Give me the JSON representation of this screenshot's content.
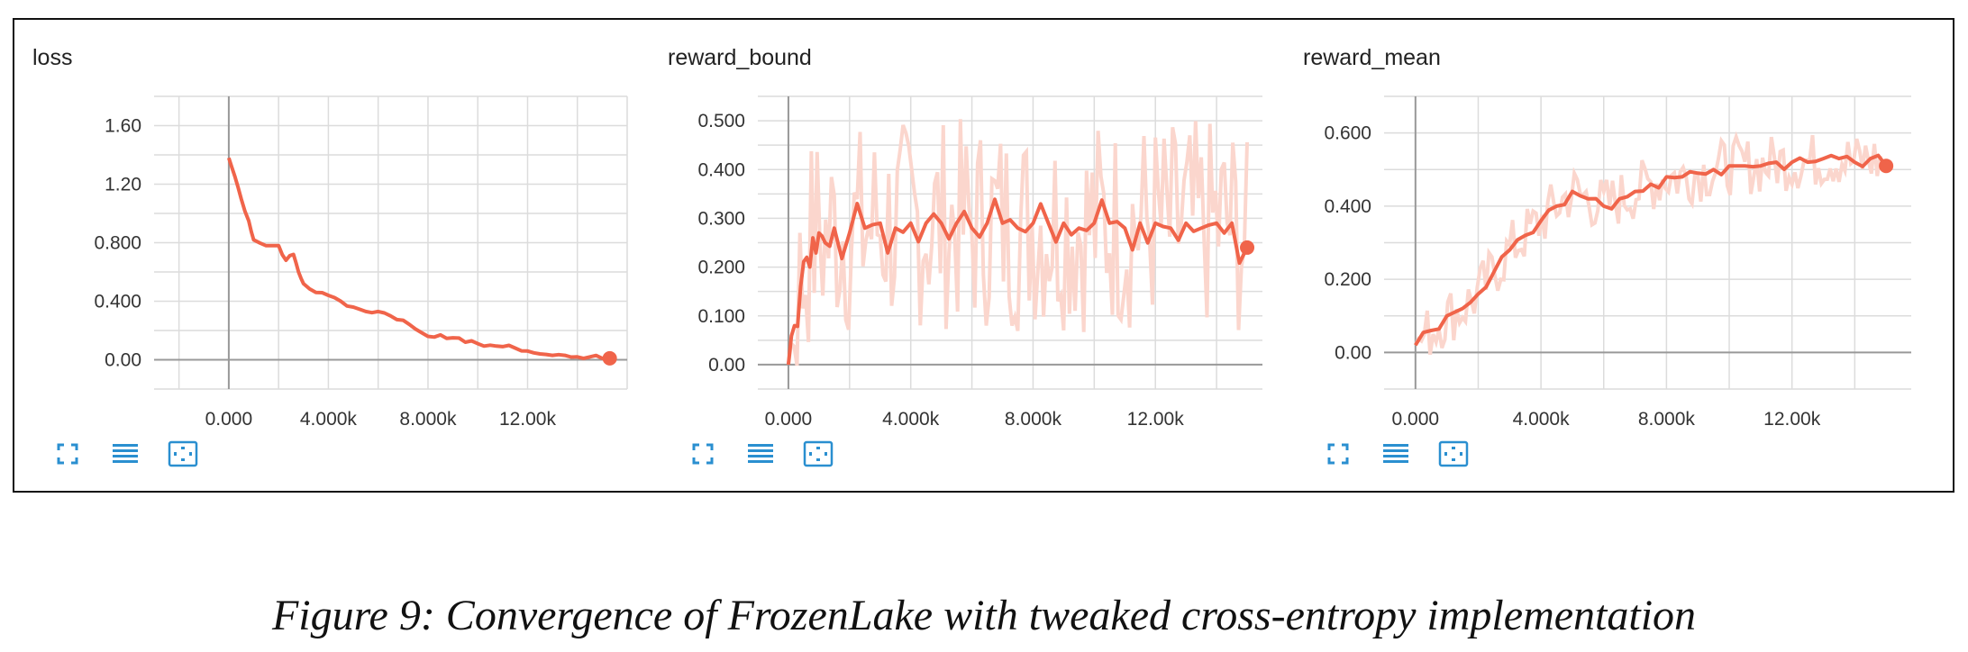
{
  "caption": "Figure 9: Convergence of FrozenLake with tweaked cross-entropy implementation",
  "colors": {
    "line": "#f0644a",
    "band": "#fbd6cd",
    "grid": "#dcdcdc",
    "axis": "#999999",
    "icon": "#2a8fd0"
  },
  "toolbar_icons": [
    "fullscreen-icon",
    "data-table-icon",
    "fit-domain-icon"
  ],
  "chart_data": [
    {
      "type": "line",
      "title": "loss",
      "xlim": [
        -3000,
        16000
      ],
      "ylim": [
        -0.2,
        1.8
      ],
      "xticks": [
        0,
        4000,
        8000,
        12000
      ],
      "xtick_labels": [
        "0.000",
        "4.000k",
        "8.000k",
        "12.00k"
      ],
      "yticks": [
        0,
        0.4,
        0.8,
        1.2,
        1.6
      ],
      "ytick_labels": [
        "0.00",
        "0.400",
        "0.800",
        "1.20",
        "1.60"
      ],
      "grid": true,
      "noise_band": false,
      "x": [
        0,
        250,
        500,
        800,
        1000,
        1500,
        2000,
        2300,
        2600,
        2800,
        3000,
        3500,
        4000,
        4500,
        5000,
        5500,
        6000,
        6500,
        7000,
        7500,
        8000,
        8500,
        9000,
        9500,
        10000,
        10500,
        11000,
        11500,
        12000,
        12500,
        13000,
        13500,
        14000,
        14500,
        15000,
        15300
      ],
      "y": [
        1.38,
        1.25,
        1.1,
        0.95,
        0.82,
        0.78,
        0.78,
        0.68,
        0.72,
        0.6,
        0.52,
        0.46,
        0.44,
        0.4,
        0.36,
        0.33,
        0.33,
        0.3,
        0.27,
        0.21,
        0.16,
        0.17,
        0.15,
        0.12,
        0.11,
        0.1,
        0.09,
        0.08,
        0.06,
        0.04,
        0.03,
        0.03,
        0.02,
        0.02,
        0.01,
        0.01
      ]
    },
    {
      "type": "line",
      "title": "reward_bound",
      "xlim": [
        -1000,
        15500
      ],
      "ylim": [
        -0.05,
        0.55
      ],
      "xticks": [
        0,
        4000,
        8000,
        12000
      ],
      "xtick_labels": [
        "0.000",
        "4.000k",
        "8.000k",
        "12.00k"
      ],
      "yticks": [
        0,
        0.1,
        0.2,
        0.3,
        0.4,
        0.5
      ],
      "ytick_labels": [
        "0.00",
        "0.100",
        "0.200",
        "0.300",
        "0.400",
        "0.500"
      ],
      "grid": true,
      "noise_band": true,
      "x": [
        0,
        200,
        400,
        600,
        800,
        1000,
        1200,
        1500,
        2000,
        2500,
        3000,
        3500,
        4000,
        4500,
        5000,
        5500,
        6000,
        6500,
        7000,
        7500,
        8000,
        8500,
        9000,
        9500,
        10000,
        10500,
        11000,
        11500,
        12000,
        12500,
        13000,
        13500,
        14000,
        14500,
        15000
      ],
      "y": [
        0.0,
        0.08,
        0.16,
        0.22,
        0.26,
        0.27,
        0.25,
        0.28,
        0.27,
        0.28,
        0.29,
        0.28,
        0.29,
        0.29,
        0.29,
        0.29,
        0.28,
        0.29,
        0.29,
        0.28,
        0.29,
        0.29,
        0.29,
        0.28,
        0.29,
        0.29,
        0.28,
        0.29,
        0.29,
        0.28,
        0.29,
        0.28,
        0.29,
        0.29,
        0.24
      ]
    },
    {
      "type": "line",
      "title": "reward_mean",
      "xlim": [
        -1000,
        15800
      ],
      "ylim": [
        -0.1,
        0.7
      ],
      "xticks": [
        0,
        4000,
        8000,
        12000
      ],
      "xtick_labels": [
        "0.000",
        "4.000k",
        "8.000k",
        "12.00k"
      ],
      "yticks": [
        0,
        0.2,
        0.4,
        0.6
      ],
      "ytick_labels": [
        "0.00",
        "0.200",
        "0.400",
        "0.600"
      ],
      "grid": true,
      "noise_band": true,
      "x": [
        0,
        500,
        1000,
        1500,
        2000,
        2500,
        3000,
        3500,
        4000,
        4500,
        5000,
        5500,
        6000,
        6500,
        7000,
        7500,
        8000,
        8500,
        9000,
        9500,
        10000,
        10500,
        11000,
        11500,
        12000,
        12500,
        13000,
        13500,
        14000,
        14500,
        15000
      ],
      "y": [
        0.02,
        0.06,
        0.1,
        0.12,
        0.16,
        0.22,
        0.28,
        0.32,
        0.36,
        0.4,
        0.44,
        0.42,
        0.4,
        0.42,
        0.44,
        0.46,
        0.48,
        0.48,
        0.49,
        0.5,
        0.51,
        0.51,
        0.51,
        0.52,
        0.52,
        0.52,
        0.53,
        0.53,
        0.52,
        0.53,
        0.51
      ]
    }
  ]
}
